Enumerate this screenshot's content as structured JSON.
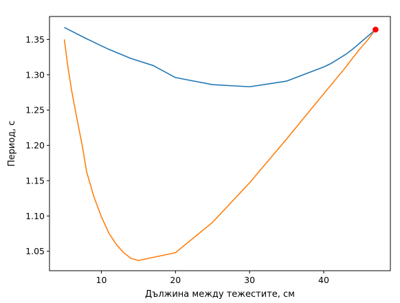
{
  "chart_data": {
    "type": "line",
    "xlabel": "Дължина между тежестите, см",
    "ylabel": "Период, с",
    "xlim": [
      3,
      49
    ],
    "ylim": [
      1.0225,
      1.3825
    ],
    "xticks": [
      {
        "value": 10,
        "label": "10"
      },
      {
        "value": 20,
        "label": "20"
      },
      {
        "value": 30,
        "label": "30"
      },
      {
        "value": 40,
        "label": "40"
      }
    ],
    "yticks": [
      {
        "value": 1.05,
        "label": "1.05"
      },
      {
        "value": 1.1,
        "label": "1.10"
      },
      {
        "value": 1.15,
        "label": "1.15"
      },
      {
        "value": 1.2,
        "label": "1.20"
      },
      {
        "value": 1.25,
        "label": "1.25"
      },
      {
        "value": 1.3,
        "label": "1.30"
      },
      {
        "value": 1.35,
        "label": "1.35"
      }
    ],
    "series": [
      {
        "color": "#1f77b4",
        "x": [
          5,
          8,
          11,
          14,
          17,
          20,
          25,
          30,
          35,
          40,
          41,
          43,
          44,
          45,
          46,
          47
        ],
        "y": [
          1.367,
          1.351,
          1.336,
          1.323,
          1.313,
          1.296,
          1.286,
          1.283,
          1.291,
          1.311,
          1.316,
          1.329,
          1.337,
          1.346,
          1.355,
          1.364
        ]
      },
      {
        "color": "#ff7f0e",
        "x": [
          5,
          5.5,
          6,
          6.5,
          7,
          7.5,
          8,
          9,
          10,
          11,
          12,
          13,
          14,
          15,
          20,
          25,
          30,
          35,
          40,
          43,
          44,
          45,
          46,
          47
        ],
        "y": [
          1.35,
          1.31,
          1.277,
          1.249,
          1.222,
          1.195,
          1.163,
          1.127,
          1.099,
          1.076,
          1.06,
          1.048,
          1.04,
          1.037,
          1.048,
          1.091,
          1.147,
          1.209,
          1.273,
          1.311,
          1.325,
          1.338,
          1.35,
          1.364
        ]
      }
    ],
    "markers": [
      {
        "x": 47,
        "y": 1.364,
        "color": "#ff0000"
      }
    ],
    "grid": false
  }
}
